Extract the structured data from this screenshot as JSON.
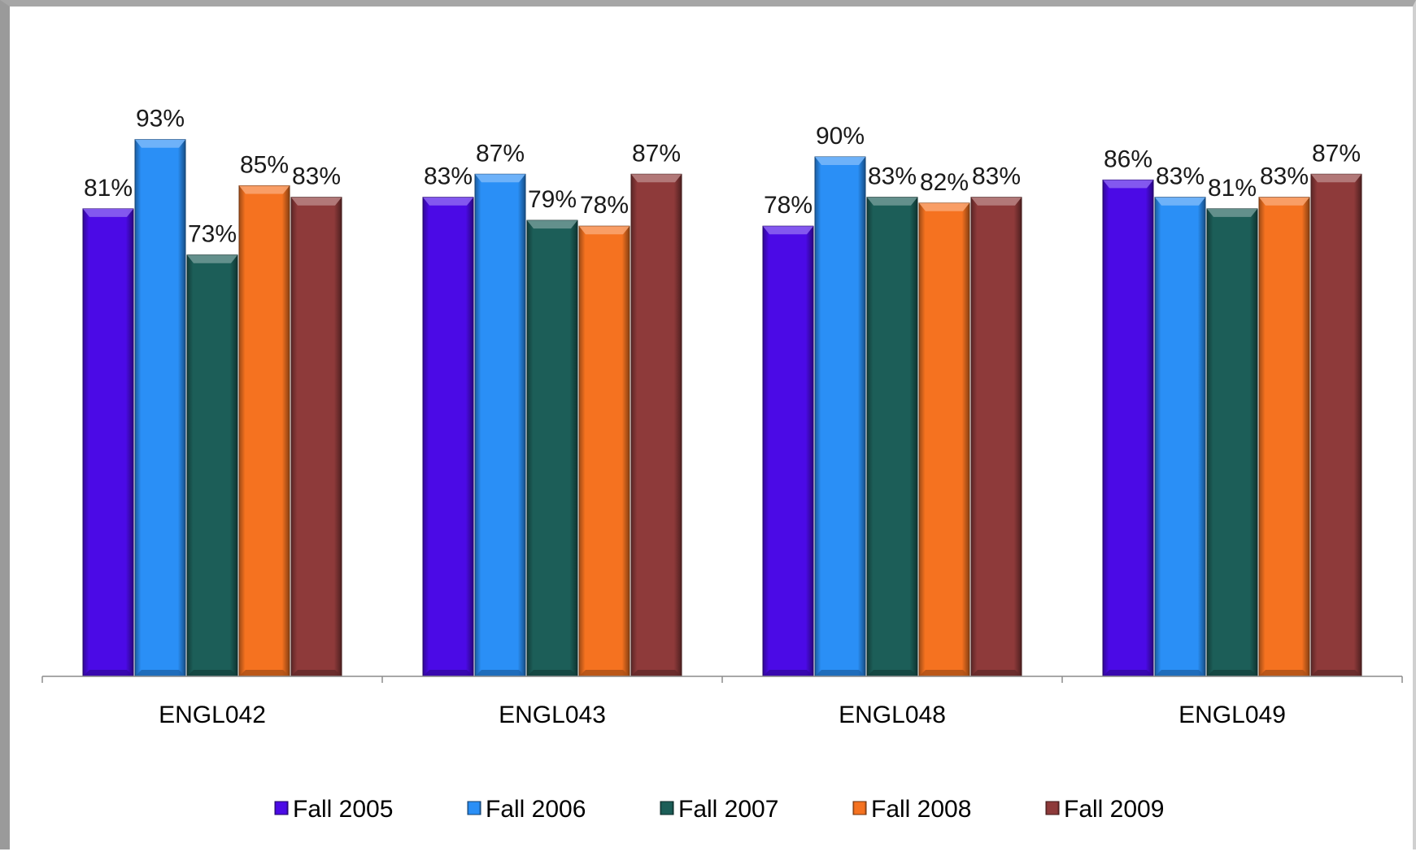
{
  "chart_data": {
    "type": "bar",
    "title": "",
    "xlabel": "",
    "ylabel": "",
    "ylim": [
      0,
      100
    ],
    "grid": false,
    "legend_position": "bottom",
    "categories": [
      "ENGL042",
      "ENGL043",
      "ENGL048",
      "ENGL049"
    ],
    "series": [
      {
        "name": "Fall 2005",
        "color": "#4b0ae6",
        "values": [
          81,
          83,
          78,
          86
        ],
        "labels": [
          "81%",
          "83%",
          "78%",
          "86%"
        ]
      },
      {
        "name": "Fall 2006",
        "color": "#2a8ff6",
        "values": [
          93,
          87,
          90,
          83
        ],
        "labels": [
          "93%",
          "87%",
          "90%",
          "83%"
        ]
      },
      {
        "name": "Fall 2007",
        "color": "#1c5e58",
        "values": [
          73,
          79,
          83,
          81
        ],
        "labels": [
          "73%",
          "79%",
          "83%",
          "81%"
        ]
      },
      {
        "name": "Fall 2008",
        "color": "#f57220",
        "values": [
          85,
          78,
          82,
          83
        ],
        "labels": [
          "85%",
          "78%",
          "82%",
          "83%"
        ]
      },
      {
        "name": "Fall 2009",
        "color": "#8e3a3a",
        "values": [
          83,
          87,
          83,
          87
        ],
        "labels": [
          "83%",
          "87%",
          "83%",
          "87%"
        ]
      }
    ]
  }
}
